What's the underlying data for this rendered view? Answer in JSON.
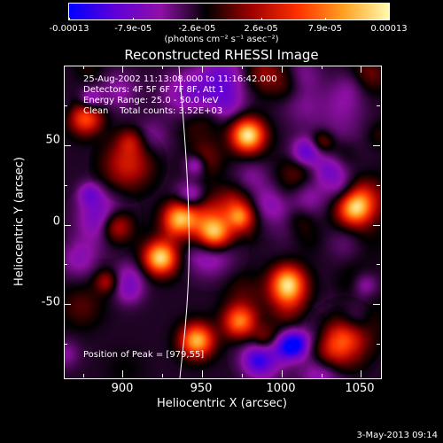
{
  "chart_data": {
    "type": "heatmap",
    "title": "Reconstructed RHESSI Image",
    "xlabel": "Heliocentric X (arcsec)",
    "ylabel": "Heliocentric Y (arcsec)",
    "xlim": [
      863,
      1062
    ],
    "ylim": [
      -96,
      100
    ],
    "x_ticks": [
      "900",
      "950",
      "1000",
      "1050"
    ],
    "y_ticks": [
      "50",
      "0",
      "-50"
    ],
    "colorbar": {
      "tick_labels": [
        "-0.00013",
        "-7.9e-05",
        "-2.6e-05",
        "2.6e-05",
        "7.9e-05",
        "0.00013"
      ],
      "unit_label": "(photons cm⁻² s⁻¹ asec⁻²)",
      "colors": [
        "#0000ff",
        "#5f00d8",
        "#9010a8",
        "#000000",
        "#a00000",
        "#ff3000",
        "#ffa020",
        "#fffbb0"
      ]
    },
    "annotations": {
      "time_range": "25-Aug-2002 11:13:08.000 to 11:16:42.000",
      "detectors": "Detectors: 4F 5F 6F 7F 8F, Att 1",
      "energy_range": "Energy Range: 25.0 - 50.0 keV",
      "clean_counts": "Clean    Total counts: 3.52E+03",
      "peak_position": "Position of Peak = [979,55]"
    },
    "bright_sources": [
      {
        "x": 978,
        "y": 57,
        "intensity": 1.0
      },
      {
        "x": 923,
        "y": -20,
        "intensity": 0.95
      },
      {
        "x": 946,
        "y": -72,
        "intensity": 0.85
      },
      {
        "x": 957,
        "y": -5,
        "intensity": 0.8
      },
      {
        "x": 935,
        "y": 5,
        "intensity": 0.75
      },
      {
        "x": 1003,
        "y": -35,
        "intensity": 0.7
      },
      {
        "x": 1046,
        "y": 12,
        "intensity": 0.65
      },
      {
        "x": 973,
        "y": -60,
        "intensity": 0.7
      },
      {
        "x": 876,
        "y": 68,
        "intensity": 0.6
      },
      {
        "x": 895,
        "y": 0,
        "intensity": 0.55
      }
    ]
  },
  "footer": {
    "timestamp": "3-May-2013 09:14"
  }
}
